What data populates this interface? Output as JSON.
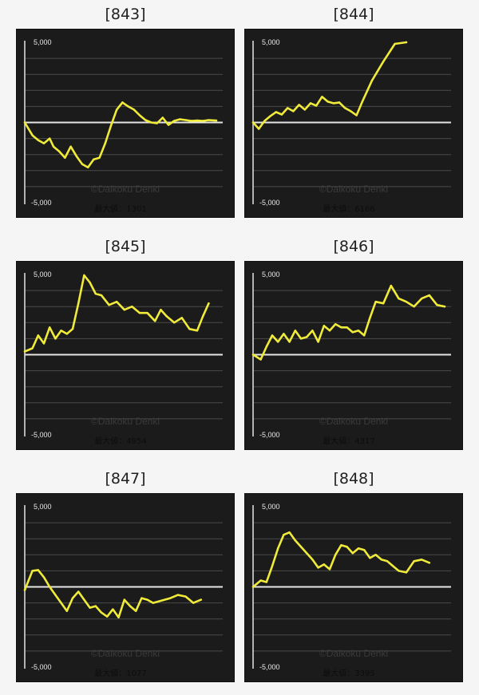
{
  "colors": {
    "background": "#f5f5f5",
    "chart_bg": "#1b1b1b",
    "grid": "#4a4a4a",
    "zero_line": "#e6e6e6",
    "series": "#f0eb3a"
  },
  "watermark": "©Daikoku Denki",
  "chart_data": [
    {
      "id": "843",
      "title": "[843]",
      "type": "line",
      "ytick_top": "5,000",
      "ytick_bottom": "-5,000",
      "ylim": [
        -5000,
        5000
      ],
      "max_label": "最大値：1301",
      "grid": true,
      "x": [
        0,
        0.04,
        0.07,
        0.1,
        0.13,
        0.15,
        0.18,
        0.21,
        0.24,
        0.27,
        0.3,
        0.33,
        0.36,
        0.39,
        0.42,
        0.45,
        0.48,
        0.51,
        0.54,
        0.57,
        0.6,
        0.63,
        0.66,
        0.69,
        0.72,
        0.75,
        0.78,
        0.81,
        0.84,
        0.87,
        0.9,
        0.93,
        0.96,
        1.0
      ],
      "y": [
        0,
        -800,
        -1100,
        -1300,
        -1000,
        -1500,
        -1800,
        -2200,
        -1500,
        -2100,
        -2600,
        -2800,
        -2300,
        -2200,
        -1300,
        -200,
        800,
        1250,
        1000,
        800,
        450,
        150,
        0,
        -50,
        300,
        -150,
        100,
        200,
        150,
        100,
        120,
        100,
        150,
        120
      ]
    },
    {
      "id": "844",
      "title": "[844]",
      "type": "line",
      "ytick_top": "5,000",
      "ytick_bottom": "-5,000",
      "ylim": [
        -5000,
        5000
      ],
      "max_label": "最大値：6166",
      "grid": true,
      "x": [
        0,
        0.03,
        0.06,
        0.09,
        0.12,
        0.15,
        0.18,
        0.21,
        0.24,
        0.27,
        0.3,
        0.33,
        0.36,
        0.39,
        0.42,
        0.45,
        0.48,
        0.51,
        0.54,
        0.57,
        0.62,
        0.68,
        0.74,
        0.8
      ],
      "y": [
        0,
        -400,
        100,
        400,
        650,
        500,
        900,
        700,
        1100,
        800,
        1200,
        1050,
        1600,
        1300,
        1200,
        1250,
        900,
        700,
        450,
        1300,
        2600,
        3800,
        4900,
        5000
      ]
    },
    {
      "id": "845",
      "title": "[845]",
      "type": "line",
      "ytick_top": "5,000",
      "ytick_bottom": "-5,000",
      "ylim": [
        -5000,
        5000
      ],
      "max_label": "最大値：4954",
      "grid": true,
      "x": [
        0,
        0.04,
        0.07,
        0.1,
        0.13,
        0.16,
        0.19,
        0.22,
        0.25,
        0.28,
        0.31,
        0.34,
        0.37,
        0.4,
        0.44,
        0.48,
        0.52,
        0.56,
        0.6,
        0.64,
        0.68,
        0.71,
        0.74,
        0.78,
        0.82,
        0.86,
        0.9,
        0.93,
        0.96
      ],
      "y": [
        200,
        400,
        1200,
        700,
        1700,
        1000,
        1500,
        1300,
        1600,
        3200,
        4950,
        4500,
        3800,
        3700,
        3100,
        3300,
        2800,
        3000,
        2600,
        2600,
        2100,
        2800,
        2400,
        2000,
        2300,
        1600,
        1500,
        2400,
        3200
      ]
    },
    {
      "id": "846",
      "title": "[846]",
      "type": "line",
      "ytick_top": "5,000",
      "ytick_bottom": "-5,000",
      "ylim": [
        -5000,
        5000
      ],
      "max_label": "最大値：4317",
      "grid": true,
      "x": [
        0,
        0.04,
        0.07,
        0.1,
        0.13,
        0.16,
        0.19,
        0.22,
        0.25,
        0.28,
        0.31,
        0.34,
        0.37,
        0.4,
        0.43,
        0.46,
        0.49,
        0.52,
        0.55,
        0.58,
        0.61,
        0.64,
        0.68,
        0.72,
        0.76,
        0.8,
        0.84,
        0.88,
        0.92,
        0.96,
        1.0
      ],
      "y": [
        0,
        -300,
        500,
        1200,
        800,
        1300,
        800,
        1500,
        1000,
        1100,
        1500,
        800,
        1800,
        1500,
        1900,
        1700,
        1700,
        1400,
        1500,
        1200,
        2300,
        3300,
        3200,
        4300,
        3500,
        3300,
        3000,
        3500,
        3700,
        3100,
        3000
      ]
    },
    {
      "id": "847",
      "title": "[847]",
      "type": "line",
      "ytick_top": "5,000",
      "ytick_bottom": "-5,000",
      "ylim": [
        -5000,
        5000
      ],
      "max_label": "最大値：1077",
      "grid": true,
      "x": [
        0,
        0.04,
        0.07,
        0.1,
        0.13,
        0.16,
        0.19,
        0.22,
        0.25,
        0.28,
        0.31,
        0.34,
        0.37,
        0.4,
        0.43,
        0.46,
        0.49,
        0.52,
        0.55,
        0.58,
        0.61,
        0.64,
        0.67,
        0.7,
        0.73,
        0.76,
        0.8,
        0.84,
        0.88,
        0.92
      ],
      "y": [
        -200,
        1000,
        1050,
        600,
        0,
        -500,
        -1000,
        -1500,
        -700,
        -300,
        -800,
        -1300,
        -1200,
        -1600,
        -1850,
        -1400,
        -1900,
        -800,
        -1200,
        -1500,
        -700,
        -800,
        -1000,
        -900,
        -800,
        -700,
        -500,
        -600,
        -1000,
        -800
      ]
    },
    {
      "id": "848",
      "title": "[848]",
      "type": "line",
      "ytick_top": "5,000",
      "ytick_bottom": "-5,000",
      "ylim": [
        -5000,
        5000
      ],
      "max_label": "最大値：3395",
      "grid": true,
      "x": [
        0,
        0.04,
        0.07,
        0.1,
        0.13,
        0.16,
        0.19,
        0.22,
        0.25,
        0.28,
        0.31,
        0.34,
        0.37,
        0.4,
        0.43,
        0.46,
        0.49,
        0.52,
        0.55,
        0.58,
        0.61,
        0.64,
        0.67,
        0.7,
        0.73,
        0.76,
        0.8,
        0.84,
        0.88,
        0.92
      ],
      "y": [
        0,
        400,
        300,
        1300,
        2400,
        3250,
        3400,
        2900,
        2500,
        2100,
        1700,
        1200,
        1400,
        1100,
        2000,
        2600,
        2500,
        2100,
        2400,
        2300,
        1800,
        2000,
        1700,
        1600,
        1300,
        1000,
        900,
        1600,
        1700,
        1500
      ]
    }
  ]
}
